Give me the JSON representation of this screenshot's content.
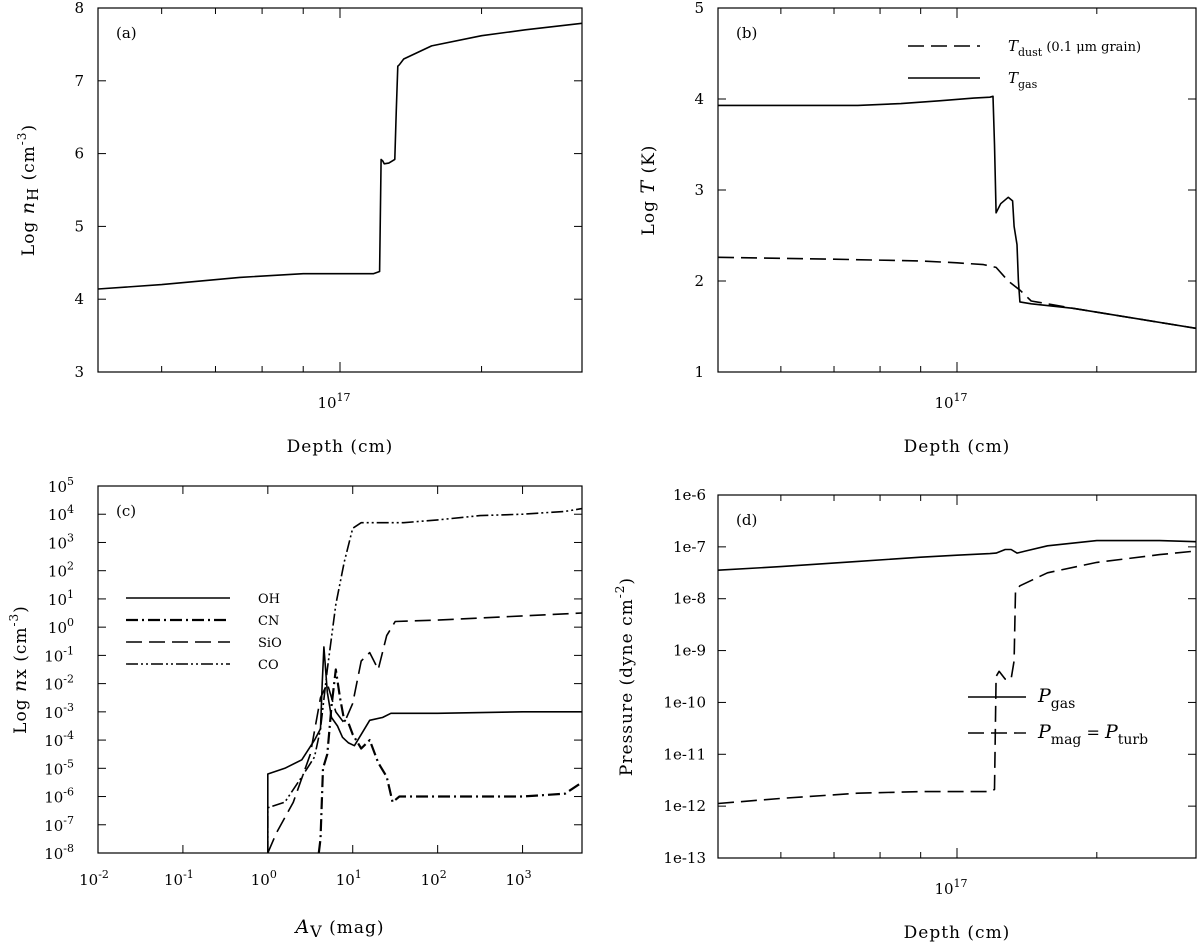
{
  "chart_data": [
    {
      "id": "a",
      "type": "line",
      "panel_label": "(a)",
      "xlabel": "Depth (cm)",
      "ylabel": "Log n_H (cm^-3)",
      "ylabel_parts": {
        "pre": "Log ",
        "var": "n",
        "sub": "H",
        "post": " (cm",
        "sup": "-3",
        "end": ")"
      },
      "xscale": "log",
      "xlim": [
        5e+16,
        2e+17
      ],
      "ylim": [
        3,
        8
      ],
      "yticks": [
        3,
        4,
        5,
        6,
        7,
        8
      ],
      "xtick_labels": [
        {
          "value": 1e+17,
          "base": "10",
          "exp": "17"
        }
      ],
      "series": [
        {
          "name": "n_H",
          "style": "solid",
          "x": [
            5e+16,
            6e+16,
            7.5e+16,
            9e+16,
            1.05e+17,
            1.1e+17,
            1.12e+17,
            1.125e+17,
            1.13e+17,
            1.135e+17,
            1.15e+17,
            1.17e+17,
            1.175e+17,
            1.18e+17,
            1.185e+17,
            1.2e+17,
            1.3e+17,
            1.5e+17,
            1.7e+17,
            2e+17
          ],
          "y": [
            4.14,
            4.2,
            4.3,
            4.35,
            4.35,
            4.35,
            4.38,
            5.92,
            5.9,
            5.86,
            5.87,
            5.92,
            6.6,
            7.2,
            7.22,
            7.3,
            7.48,
            7.62,
            7.7,
            7.79
          ]
        }
      ]
    },
    {
      "id": "b",
      "type": "line",
      "panel_label": "(b)",
      "xlabel": "Depth (cm)",
      "ylabel": "Log T (K)",
      "ylabel_parts": {
        "pre": "Log ",
        "var": "T",
        "post": " (K)"
      },
      "xscale": "log",
      "xlim": [
        5e+16,
        2e+17
      ],
      "ylim": [
        1,
        5
      ],
      "yticks": [
        1,
        2,
        3,
        4,
        5
      ],
      "xtick_labels": [
        {
          "value": 1e+17,
          "base": "10",
          "exp": "17"
        }
      ],
      "legend": [
        {
          "var": "T",
          "sub": "dust",
          "text": " (0.1 μm grain)",
          "style": "dashed"
        },
        {
          "var": "T",
          "sub": "gas",
          "text": "",
          "style": "solid"
        }
      ],
      "series": [
        {
          "name": "T_dust",
          "style": "dashed",
          "x": [
            5e+16,
            7e+16,
            9e+16,
            1e+17,
            1.08e+17,
            1.12e+17,
            1.16e+17,
            1.2e+17,
            1.24e+17,
            1.4e+17,
            1.7e+17,
            2e+17
          ],
          "y": [
            2.26,
            2.24,
            2.22,
            2.2,
            2.18,
            2.15,
            2.0,
            1.9,
            1.78,
            1.7,
            1.58,
            1.48
          ]
        },
        {
          "name": "T_gas",
          "style": "solid",
          "x": [
            5e+16,
            6e+16,
            7.5e+16,
            8.5e+16,
            9.5e+16,
            1.05e+17,
            1.1e+17,
            1.11e+17,
            1.115e+17,
            1.12e+17,
            1.135e+17,
            1.16e+17,
            1.175e+17,
            1.18e+17,
            1.19e+17,
            1.195e+17,
            1.2e+17,
            1.24e+17,
            1.4e+17,
            1.7e+17,
            2e+17
          ],
          "y": [
            3.93,
            3.93,
            3.93,
            3.95,
            3.98,
            4.01,
            4.02,
            4.03,
            3.5,
            2.75,
            2.85,
            2.92,
            2.88,
            2.6,
            2.4,
            2.0,
            1.77,
            1.75,
            1.7,
            1.58,
            1.48
          ]
        }
      ]
    },
    {
      "id": "c",
      "type": "line",
      "panel_label": "(c)",
      "xlabel": "A_V (mag)",
      "xlabel_parts": {
        "var": "A",
        "sub": "V",
        "post": " (mag)"
      },
      "ylabel": "Log nx (cm^-3)",
      "ylabel_parts": {
        "pre": "Log ",
        "var": "n",
        "post2": "x (cm",
        "sup": "-3",
        "end": ")"
      },
      "xscale": "log",
      "yscale": "log",
      "xlim": [
        -2,
        3.7
      ],
      "ylim": [
        -8,
        5
      ],
      "xtick_exps": [
        "-2",
        "-1",
        "0",
        "1",
        "2",
        "3"
      ],
      "ytick_exps": [
        "-8",
        "-7",
        "-6",
        "-5",
        "-4",
        "-3",
        "-2",
        "-1",
        "0",
        "1",
        "2",
        "3",
        "4",
        "5"
      ],
      "xtick_base": "10",
      "ytick_base": "10",
      "legend": [
        {
          "name": "OH",
          "style": "solid"
        },
        {
          "name": "CN",
          "style": "dashdot"
        },
        {
          "name": "SiO",
          "style": "dashed"
        },
        {
          "name": "CO",
          "style": "dashdotdot"
        }
      ],
      "series": [
        {
          "name": "OH",
          "style": "solid",
          "log_x": [
            0.0,
            0.0,
            0.2,
            0.4,
            0.55,
            0.62,
            0.64,
            0.66,
            0.7,
            0.75,
            0.82,
            0.88,
            0.95,
            1.02,
            1.1,
            1.2,
            1.35,
            1.45,
            2.0,
            3.0,
            3.7
          ],
          "log_y": [
            -8.0,
            -5.2,
            -5.0,
            -4.7,
            -4.0,
            -3.6,
            -2.0,
            -0.7,
            -2.3,
            -3.2,
            -3.5,
            -3.9,
            -4.1,
            -4.2,
            -3.8,
            -3.3,
            -3.2,
            -3.05,
            -3.05,
            -3.0,
            -3.0
          ],
          "exp": [
            0.0,
            3.0
          ]
        },
        {
          "name": "CN",
          "style": "dashdot",
          "log_x": [
            0.6,
            0.62,
            0.65,
            0.7,
            0.75,
            0.8,
            0.85,
            0.9,
            0.95,
            1.0,
            1.1,
            1.2,
            1.3,
            1.4,
            1.47,
            1.55,
            2.0,
            3.0,
            3.5,
            3.7
          ],
          "log_y": [
            -8.0,
            -7.5,
            -5.0,
            -4.5,
            -2.8,
            -1.5,
            -2.5,
            -3.3,
            -3.4,
            -3.8,
            -4.3,
            -4.0,
            -4.8,
            -5.3,
            -6.2,
            -6.0,
            -6.0,
            -6.0,
            -5.9,
            -5.5
          ],
          "exp": [
            0.6,
            3.7
          ]
        },
        {
          "name": "SiO",
          "style": "dashed",
          "log_x": [
            0.0,
            0.1,
            0.3,
            0.5,
            0.62,
            0.7,
            0.8,
            0.9,
            1.0,
            1.1,
            1.2,
            1.3,
            1.4,
            1.5,
            2.0,
            3.0,
            3.7
          ],
          "log_y": [
            -8.0,
            -7.3,
            -6.2,
            -4.5,
            -2.5,
            -2.0,
            -3.0,
            -3.4,
            -2.7,
            -1.2,
            -0.9,
            -1.5,
            -0.3,
            0.2,
            0.25,
            0.4,
            0.5
          ],
          "exp": [
            0.0,
            3.7
          ]
        },
        {
          "name": "CO",
          "style": "dashdotdot",
          "log_x": [
            0.0,
            0.0,
            0.2,
            0.4,
            0.55,
            0.62,
            0.7,
            0.8,
            0.9,
            1.0,
            1.1,
            1.2,
            1.4,
            1.6,
            2.0,
            2.5,
            3.0,
            3.5,
            3.7
          ],
          "log_y": [
            -8.0,
            -6.4,
            -6.2,
            -5.3,
            -4.6,
            -3.6,
            -1.5,
            0.8,
            2.3,
            3.5,
            3.7,
            3.7,
            3.7,
            3.7,
            3.8,
            3.95,
            4.0,
            4.1,
            4.2
          ],
          "exp": [
            0.0,
            3.7
          ]
        }
      ]
    },
    {
      "id": "d",
      "type": "line",
      "panel_label": "(d)",
      "xlabel": "Depth (cm)",
      "ylabel": "Pressure (dyne cm^-2)",
      "ylabel_parts": {
        "pre": "Pressure (dyne cm",
        "sup": "-2",
        "end": ")"
      },
      "xscale": "log",
      "yscale": "log",
      "xlim": [
        5e+16,
        2e+17
      ],
      "ylim": [
        -13,
        -6
      ],
      "ytick_labels": [
        "1e-13",
        "1e-12",
        "1e-11",
        "1e-10",
        "1e-9",
        "1e-8",
        "1e-7",
        "1e-6"
      ],
      "xtick_labels": [
        {
          "value": 1e+17,
          "base": "10",
          "exp": "17"
        }
      ],
      "legend": [
        {
          "var": "P",
          "sub": "gas",
          "text": "",
          "style": "solid"
        },
        {
          "var": "P",
          "sub": "mag",
          "text": " = ",
          "var2": "P",
          "sub2": "turb",
          "style": "dashed"
        }
      ],
      "series": [
        {
          "name": "P_gas",
          "style": "solid",
          "x": [
            5e+16,
            6e+16,
            7.5e+16,
            9e+16,
            1e+17,
            1.1e+17,
            1.12e+17,
            1.15e+17,
            1.17e+17,
            1.19e+17,
            1.22e+17,
            1.3e+17,
            1.5e+17,
            1.8e+17,
            2e+17
          ],
          "log_y": [
            -7.45,
            -7.38,
            -7.28,
            -7.2,
            -7.16,
            -7.13,
            -7.12,
            -7.05,
            -7.05,
            -7.12,
            -7.08,
            -6.98,
            -6.88,
            -6.88,
            -6.9
          ],
          "exp": [
            0,
            0
          ]
        },
        {
          "name": "P_mag",
          "style": "dashed",
          "x": [
            5e+16,
            6e+16,
            7.5e+16,
            9e+16,
            1e+17,
            1.1e+17,
            1.115e+17,
            1.12e+17,
            1.13e+17,
            1.15e+17,
            1.17e+17,
            1.18e+17,
            1.185e+17,
            1.2e+17,
            1.3e+17,
            1.5e+17,
            1.8e+17,
            2e+17
          ],
          "log_y": [
            -11.95,
            -11.85,
            -11.75,
            -11.72,
            -11.72,
            -11.72,
            -11.68,
            -9.5,
            -9.4,
            -9.55,
            -9.55,
            -9.2,
            -7.85,
            -7.75,
            -7.5,
            -7.3,
            -7.15,
            -7.08
          ],
          "exp": [
            0,
            0
          ]
        }
      ]
    }
  ]
}
